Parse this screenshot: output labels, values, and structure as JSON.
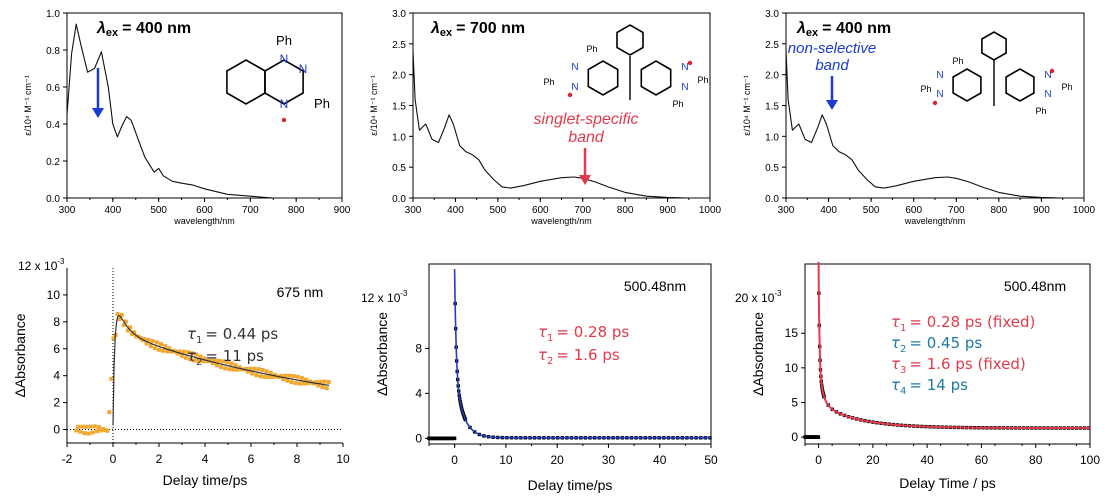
{
  "colors": {
    "axis": "#000000",
    "spectrum": "#111111",
    "orange": "#f0a830",
    "fit_dark": "#333333",
    "blue_fit": "#1f3fbf",
    "red": "#e23a4a",
    "teal": "#1b7aa0",
    "arrow_blue": "#1a3bd0",
    "arrow_red": "#e23a4a",
    "radical_red": "#e0202a",
    "n_blue": "#1a3bd0"
  },
  "panels": {
    "p1": {
      "lambda": "λ",
      "lambda_sub": "ex",
      "lambda_val": "= 400 nm",
      "ph": "Ph",
      "n": "N"
    },
    "p2": {
      "lambda": "λ",
      "lambda_sub": "ex",
      "lambda_val": "= 700 nm",
      "band1": "singlet-specific",
      "band2": "band",
      "ph": "Ph",
      "n": "N"
    },
    "p3": {
      "lambda": "λ",
      "lambda_sub": "ex",
      "lambda_val": "= 400 nm",
      "band1": "non-selective",
      "band2": "band",
      "ph": "Ph",
      "n": "N"
    },
    "k1": {
      "probe": "675 nm",
      "tau1": "= 0.44 ps",
      "tau2": "= 11 ps",
      "exp": "12 x 10",
      "exp_sup": "-3"
    },
    "k2": {
      "probe": "500.48nm",
      "tau1": "= 0.28 ps",
      "tau2": "= 1.6 ps",
      "exp": "12 x 10",
      "exp_sup": "-3"
    },
    "k3": {
      "probe": "500.48nm",
      "tau1": "= 0.28 ps (fixed)",
      "tau2": "= 0.45 ps",
      "tau3": "= 1.6 ps (fixed)",
      "tau4": "= 14 ps",
      "exp": "20 x 10",
      "exp_sup": "-3"
    }
  },
  "chart_data": [
    {
      "type": "line",
      "xlabel": "wavelength/nm",
      "ylabel": "ε/10⁴ M⁻¹ cm⁻¹",
      "xlim": [
        300,
        900
      ],
      "ylim": [
        0,
        1.0
      ],
      "xticks": [
        "300",
        "400",
        "500",
        "600",
        "700",
        "800",
        "900"
      ],
      "yticks": [
        "0.0",
        "0.2",
        "0.4",
        "0.6",
        "0.8",
        "1.0"
      ],
      "series": [
        {
          "x": [
            300,
            310,
            320,
            330,
            345,
            360,
            375,
            390,
            400,
            410,
            420,
            430,
            440,
            455,
            470,
            490,
            500,
            510,
            530,
            550,
            575,
            600,
            650,
            700,
            750,
            800,
            900
          ],
          "values": [
            0.45,
            0.78,
            0.94,
            0.83,
            0.68,
            0.7,
            0.79,
            0.6,
            0.4,
            0.33,
            0.39,
            0.44,
            0.42,
            0.32,
            0.22,
            0.14,
            0.16,
            0.12,
            0.09,
            0.08,
            0.07,
            0.05,
            0.02,
            0.01,
            0.0,
            0.0,
            0.0
          ]
        }
      ]
    },
    {
      "type": "line",
      "xlabel": "wavelength/nm",
      "ylabel": "ε/10⁴ M⁻¹ cm⁻¹",
      "xlim": [
        300,
        1000
      ],
      "ylim": [
        0,
        3.0
      ],
      "xticks": [
        "300",
        "400",
        "500",
        "600",
        "700",
        "800",
        "900",
        "1000"
      ],
      "yticks": [
        "0.0",
        "0.5",
        "1.0",
        "1.5",
        "2.0",
        "2.5",
        "3.0"
      ],
      "series": [
        {
          "x": [
            300,
            305,
            315,
            330,
            345,
            360,
            375,
            385,
            395,
            410,
            425,
            440,
            455,
            470,
            490,
            510,
            530,
            560,
            600,
            650,
            680,
            700,
            730,
            760,
            800,
            850,
            900,
            950,
            1000
          ],
          "values": [
            2.4,
            1.6,
            1.1,
            1.2,
            0.95,
            0.9,
            1.15,
            1.35,
            1.2,
            0.85,
            0.75,
            0.7,
            0.62,
            0.45,
            0.3,
            0.18,
            0.16,
            0.2,
            0.27,
            0.33,
            0.34,
            0.32,
            0.26,
            0.18,
            0.09,
            0.03,
            0.01,
            0.0,
            0.0
          ]
        }
      ]
    },
    {
      "type": "line",
      "xlabel": "wavelength/nm",
      "ylabel": "ε/10⁴ M⁻¹ cm⁻¹",
      "xlim": [
        300,
        1000
      ],
      "ylim": [
        0,
        3.0
      ],
      "xticks": [
        "300",
        "400",
        "500",
        "600",
        "700",
        "800",
        "900",
        "1000"
      ],
      "yticks": [
        "0.0",
        "0.5",
        "1.0",
        "1.5",
        "2.0",
        "2.5",
        "3.0"
      ],
      "series": [
        {
          "x": [
            300,
            305,
            315,
            330,
            345,
            360,
            375,
            385,
            395,
            410,
            425,
            440,
            455,
            470,
            490,
            510,
            530,
            560,
            600,
            650,
            680,
            700,
            730,
            760,
            800,
            850,
            900,
            950,
            1000
          ],
          "values": [
            2.4,
            1.6,
            1.1,
            1.2,
            0.95,
            0.9,
            1.15,
            1.35,
            1.2,
            0.85,
            0.75,
            0.7,
            0.62,
            0.45,
            0.3,
            0.18,
            0.16,
            0.2,
            0.27,
            0.33,
            0.34,
            0.32,
            0.26,
            0.18,
            0.09,
            0.03,
            0.01,
            0.0,
            0.0
          ]
        }
      ]
    },
    {
      "type": "scatter",
      "xlabel": "Delay time/ps",
      "ylabel": "ΔAbsorbance",
      "xlim": [
        -2,
        10
      ],
      "ylim": [
        -1,
        12
      ],
      "xticks": [
        "-2",
        "0",
        "2",
        "4",
        "6",
        "8",
        "10"
      ],
      "yticks": [
        "0",
        "2",
        "4",
        "6",
        "8",
        "10"
      ],
      "series": [
        {
          "name": "data",
          "tau1": 0.44,
          "tau2": 11
        }
      ]
    },
    {
      "type": "scatter",
      "xlabel": "Delay time/ps",
      "ylabel": "ΔAbsorbance",
      "xlim": [
        -5,
        50
      ],
      "ylim": [
        -0.5,
        15.5
      ],
      "xticks": [
        "0",
        "10",
        "20",
        "30",
        "40",
        "50"
      ],
      "yticks": [
        "0",
        "4",
        "8"
      ],
      "series": [
        {
          "name": "data",
          "tau1": 0.28,
          "tau2": 1.6
        }
      ]
    },
    {
      "type": "scatter",
      "xlabel": "Delay Time / ps",
      "ylabel": "ΔAbsorbance",
      "xlim": [
        -5,
        100
      ],
      "ylim": [
        -1,
        25
      ],
      "xticks": [
        "0",
        "20",
        "40",
        "60",
        "80",
        "100"
      ],
      "yticks": [
        "0",
        "5",
        "10",
        "15"
      ],
      "series": [
        {
          "name": "data",
          "tau1": 0.28,
          "tau2": 0.45,
          "tau3": 1.6,
          "tau4": 14
        }
      ]
    }
  ]
}
